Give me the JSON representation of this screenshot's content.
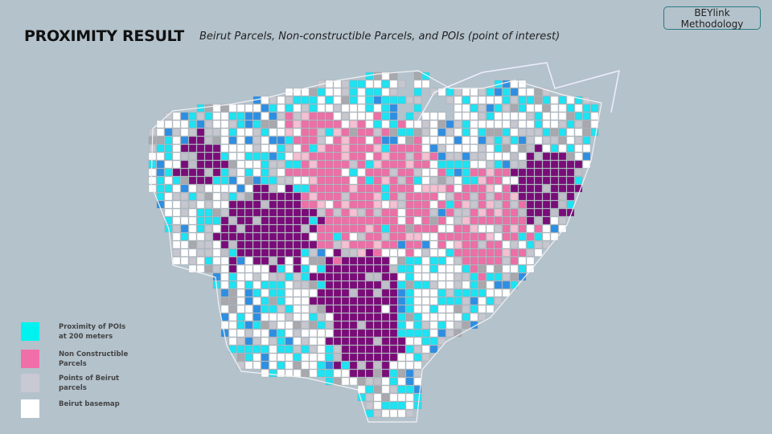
{
  "header": {
    "title": "PROXIMITY RESULT",
    "subtitle": "Beirut Parcels, Non-constructible Parcels, and POIs (point of interest)"
  },
  "badge": {
    "label": "BEYlink Methodology"
  },
  "legend": [
    {
      "label": "Proximity of POIs at 200 meters",
      "color": "#00f2f0"
    },
    {
      "label": "Non Constructible Parcels",
      "color": "#f06fa8"
    },
    {
      "label": "Points of Beirut parcels",
      "color": "#c9c9d3"
    },
    {
      "label": "Beirut basemap",
      "color": "#ffffff"
    }
  ]
}
